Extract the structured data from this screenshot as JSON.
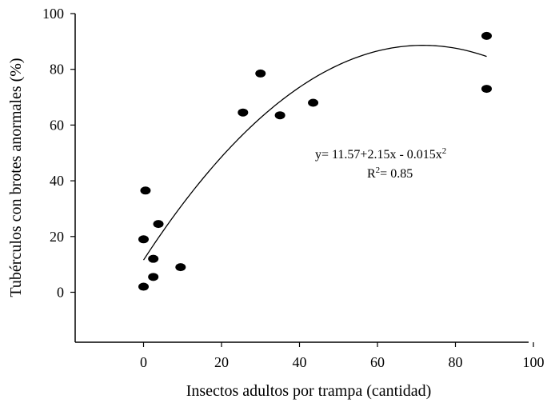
{
  "chart_data": {
    "type": "scatter",
    "title": "",
    "xlabel": "Insectos adultos por trampa (cantidad)",
    "ylabel": "Tubérculos con brotes anormales (%)",
    "xlim": [
      -18,
      100
    ],
    "ylim": [
      -18,
      100
    ],
    "xticks": [
      0,
      20,
      40,
      60,
      80,
      100
    ],
    "yticks": [
      0,
      20,
      40,
      60,
      80,
      100
    ],
    "grid": false,
    "points": [
      {
        "x": 0,
        "y": 2
      },
      {
        "x": 0,
        "y": 19
      },
      {
        "x": 0.5,
        "y": 36.5
      },
      {
        "x": 2.5,
        "y": 12
      },
      {
        "x": 2.5,
        "y": 5.5
      },
      {
        "x": 3.8,
        "y": 24.5
      },
      {
        "x": 9.5,
        "y": 9
      },
      {
        "x": 25.5,
        "y": 64.5
      },
      {
        "x": 30,
        "y": 78.5
      },
      {
        "x": 35,
        "y": 63.5
      },
      {
        "x": 43.5,
        "y": 68
      },
      {
        "x": 88,
        "y": 92
      },
      {
        "x": 88,
        "y": 73
      }
    ],
    "fit": {
      "model": "quadratic",
      "a": 11.57,
      "b": 2.15,
      "c": -0.015,
      "x_range": [
        0,
        88
      ]
    },
    "annotations": {
      "equation_main": "y= 11.57+2.15x - 0.015x",
      "equation_sup": "2",
      "r2_main": "R",
      "r2_sup": "2",
      "r2_value": "= 0.85"
    }
  }
}
